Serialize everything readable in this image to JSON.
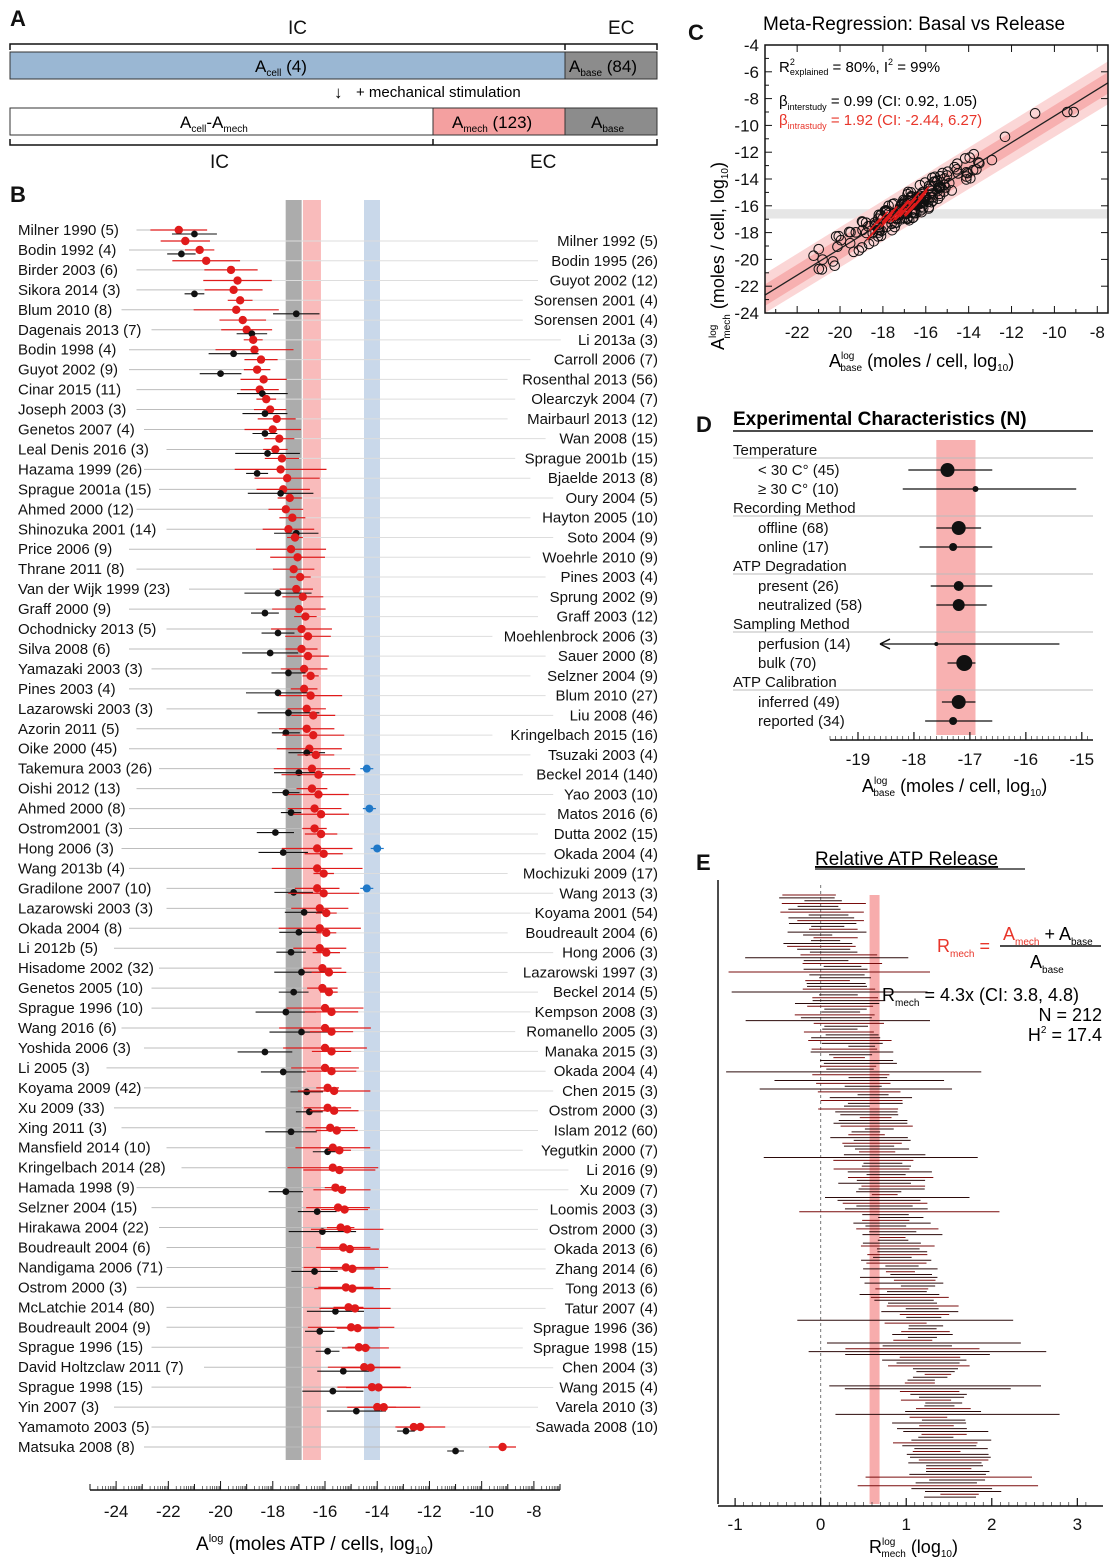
{
  "panelA": {
    "letter": "A",
    "top_ic": "IC",
    "top_ec": "EC",
    "acell_label": "A",
    "acell_sub": "cell",
    "acell_n": " (4)",
    "abase_label": "A",
    "abase_sub": "base",
    "abase_n": " (84)",
    "arrow": "↓",
    "stim": "+ mechanical stimulation",
    "bot_cell_label": "A",
    "bot_cell_sub": "cell",
    "bot_dash": "-A",
    "bot_mech_sub": "mech",
    "amech_label": "A",
    "amech_sub": "mech",
    "amech_n": " (123)",
    "bot_base_label": "A",
    "bot_base_sub": "base",
    "bot_ic": "IC",
    "bot_ec": "EC",
    "colors": {
      "blue": "#9ab7d3",
      "gray": "#8c8c8c",
      "pink": "#f4a0a0"
    }
  },
  "panelB": {
    "letter": "B",
    "xlabel_pre": "A",
    "xlabel_sup": "log",
    "xlabel_post": " (moles ATP / cells, log",
    "xlabel_sub": "10",
    "xlabel_end": ")",
    "ticks": [
      "-24",
      "-22",
      "-20",
      "-18",
      "-16",
      "-14",
      "-12",
      "-10",
      "-8"
    ],
    "left_labels": [
      "Milner 1990 (5)",
      "Bodin 1992 (4)",
      "Birder 2003 (6)",
      "Sikora 2014 (3)",
      "Blum 2010 (8)",
      "Dagenais 2013 (7)",
      "Bodin 1998 (4)",
      "Guyot 2002 (9)",
      "Cinar 2015 (11)",
      "Joseph 2003 (3)",
      "Genetos 2007 (4)",
      "Leal Denis 2016 (3)",
      "Hazama 1999 (26)",
      "Sprague 2001a (15)",
      "Ahmed 2000 (12)",
      "Shinozuka 2001 (14)",
      "Price 2006 (9)",
      "Thrane 2011 (8)",
      "Van der Wijk 1999 (23)",
      "Graff 2000 (9)",
      "Ochodnicky 2013 (5)",
      "Silva 2008 (6)",
      "Yamazaki 2003 (3)",
      "Pines 2003 (4)",
      "Lazarowski 2003 (3)",
      "Azorin 2011 (5)",
      "Oike 2000 (45)",
      "Takemura 2003 (26)",
      "Oishi 2012 (13)",
      "Ahmed 2000 (8)",
      "Ostrom2001 (3)",
      "Hong 2006 (3)",
      "Wang 2013b (4)",
      "Gradilone 2007 (10)",
      "Lazarowski 2003 (3)",
      "Okada 2004 (8)",
      "Li 2012b (5)",
      "Hisadome 2002 (32)",
      "Genetos 2005 (10)",
      "Sprague 1996 (10)",
      "Wang 2016 (6)",
      "Yoshida 2006 (3)",
      "Li 2005 (3)",
      "Koyama 2009 (42)",
      "Xu 2009 (33)",
      "Xing 2011 (3)",
      "Mansfield 2014 (10)",
      "Kringelbach 2014 (28)",
      "Hamada 1998 (9)",
      "Selzner 2004 (15)",
      "Hirakawa 2004 (22)",
      "Boudreault 2004 (6)",
      "Nandigama 2006 (71)",
      "Ostrom 2000 (3)",
      "McLatchie 2014 (80)",
      "Boudreault 2004 (9)",
      "Sprague 1996 (15)",
      "David Holtzclaw 2011 (7)",
      "Sprague 1998 (15)",
      "Yin 2007 (3)",
      "Yamamoto 2003 (5)",
      "Matsuka 2008 (8)"
    ],
    "right_labels": [
      "Milner 1992 (5)",
      "Bodin 1995 (26)",
      "Guyot 2002 (12)",
      "Sorensen 2001 (4)",
      "Sorensen 2001 (4)",
      "Li 2013a (3)",
      "Carroll 2006 (7)",
      "Rosenthal 2013 (56)",
      "Olearczyk 2004 (7)",
      "Mairbaurl 2013 (12)",
      "Wan 2008  (15)",
      "Sprague 2001b (15)",
      "Bjaelde 2013 (8)",
      "Oury 2004 (5)",
      "Hayton 2005 (10)",
      "Soto 2004 (9)",
      "Woehrle 2010 (9)",
      "Pines 2003 (4)",
      "Sprung 2002 (9)",
      "Graff 2003 (12)",
      "Moehlenbrock 2006 (3)",
      "Sauer 2000 (8)",
      "Selzner 2004 (9)",
      "Blum 2010 (27)",
      "Liu 2008 (46)",
      "Kringelbach 2015 (16)",
      "Tsuzaki 2003 (4)",
      "Beckel 2014 (140)",
      "Yao 2003 (10)",
      "Matos 2016 (6)",
      "Dutta 2002 (15)",
      "Okada 2004 (4)",
      "Mochizuki 2009 (17)",
      "Wang 2013 (3)",
      "Koyama 2001 (54)",
      "Boudreault 2004 (6)",
      "Hong 2006 (3)",
      "Lazarowski 1997 (3)",
      "Beckel 2014 (5)",
      "Kempson 2008 (3)",
      "Romanello 2005 (3)",
      "Manaka 2015 (3)",
      "Okada 2004 (4)",
      "Chen 2015 (3)",
      "Ostrom 2000 (3)",
      "Islam 2012 (60)",
      "Yegutkin 2000 (7)",
      "Li 2016 (9)",
      "Xu 2009 (7)",
      "Loomis 2003 (3)",
      "Ostrom 2000 (3)",
      "Okada 2013 (6)",
      "Zhang 2014 (6)",
      "Tong 2013 (6)",
      "Tatur 2007 (4)",
      "Sprague 1996 (36)",
      "Sprague 1998 (15)",
      "Chen 2004 (3)",
      "Wang 2015 (4)",
      "Varela 2010 (3)",
      "Sawada 2008 (10)"
    ]
  },
  "panelC": {
    "letter": "C",
    "title": "Meta-Regression: Basal vs Release",
    "r2_pre": "R",
    "r2_sup": "2",
    "r2_sub": "explained",
    "r2_post": " = 80%, I",
    "i2_sup": "2",
    "i2_post": " = 99%",
    "beta1_sym": "β",
    "beta1_sub": "interstudy",
    "beta1_post": " = 0.99 (CI: 0.92, 1.05)",
    "beta2_sym": "β",
    "beta2_sub": "intrastudy",
    "beta2_post": " = 1.92 (CI: -2.44, 6.27)",
    "ylabel_a": "A",
    "ylabel_sup": "log",
    "ylabel_sub": "mech",
    "ylabel_post": " (moles / cell, log",
    "ylabel_sub2": "10",
    "ylabel_end": ")",
    "xlabel_a": "A",
    "xlabel_sup": "log",
    "xlabel_sub": "base",
    "xlabel_post": " (moles / cell, log",
    "xlabel_sub2": "10",
    "xlabel_end": ")",
    "xticks": [
      "-22",
      "-20",
      "-18",
      "-16",
      "-14",
      "-12",
      "-10",
      "-8"
    ],
    "yticks": [
      "-4",
      "-6",
      "-8",
      "-10",
      "-12",
      "-14",
      "-16",
      "-18",
      "-20",
      "-22",
      "-24"
    ]
  },
  "panelD": {
    "letter": "D",
    "title": "Experimental Characteristics (N)",
    "groups": [
      {
        "header": "Temperature",
        "rows": [
          "< 30 C° (45)",
          "≥ 30 C° (10)"
        ]
      },
      {
        "header": "Recording Method",
        "rows": [
          "offline (68)",
          "online (17)"
        ]
      },
      {
        "header": "ATP Degradation",
        "rows": [
          "present (26)",
          "neutralized (58)"
        ]
      },
      {
        "header": "Sampling Method",
        "rows": [
          "perfusion (14)",
          "bulk (70)"
        ]
      },
      {
        "header": "ATP Calibration",
        "rows": [
          "inferred (49)",
          "reported (34)"
        ]
      }
    ],
    "xticks": [
      "-19",
      "-18",
      "-17",
      "-16",
      "-15"
    ],
    "xlabel_a": "A",
    "xlabel_sup": "log",
    "xlabel_sub": "base",
    "xlabel_post": " (moles / cell, log",
    "xlabel_sub2": "10",
    "xlabel_end": ")"
  },
  "panelE": {
    "letter": "E",
    "title": "Relative ATP Release",
    "eq_r": "R",
    "eq_rsub": "mech",
    "eq_eq": " = ",
    "eq_num_a": "A",
    "eq_num_asub": "mech",
    "eq_num_plus": " + A",
    "eq_num_bsub": "base",
    "eq_den": "A",
    "eq_den_sub": "base",
    "res_r": "R",
    "res_sub": "mech",
    "res_post": " = 4.3x (CI: 3.8, 4.8)",
    "n_text": "N = 212",
    "h2_pre": "H",
    "h2_sup": "2",
    "h2_post": " = 17.4",
    "xticks": [
      "-1",
      "0",
      "1",
      "2",
      "3"
    ],
    "xlabel_r": "R",
    "xlabel_sup": "log",
    "xlabel_sub": "mech",
    "xlabel_post": " (log",
    "xlabel_sub2": "10",
    "xlabel_end": ")"
  },
  "chart_data": [
    {
      "type": "scatter",
      "panel": "B",
      "subtype": "forest",
      "xlim": [
        -25,
        -7
      ],
      "summary_bands": {
        "gray_center": -17.2,
        "pink_center": -16.5,
        "blue_center": -14.2
      },
      "left_release_means": [
        -21.6,
        -20.8,
        -19.6,
        -19.5,
        -19.4,
        -19.0,
        -18.7,
        -18.6,
        -18.5,
        -18.1,
        -18.0,
        -17.9,
        -17.7,
        -17.6,
        -17.5,
        -17.4,
        -17.3,
        -17.2,
        -17.1,
        -17.0,
        -16.9,
        -16.9,
        -16.8,
        -16.8,
        -16.7,
        -16.7,
        -16.6,
        -16.5,
        -16.5,
        -16.4,
        -16.4,
        -16.3,
        -16.3,
        -16.3,
        -16.2,
        -16.2,
        -16.2,
        -16.1,
        -16.1,
        -16.0,
        -16.0,
        -16.0,
        -16.0,
        -15.9,
        -15.9,
        -15.8,
        -15.7,
        -15.7,
        -15.6,
        -15.5,
        -15.4,
        -15.3,
        -15.2,
        -15.2,
        -15.1,
        -15.0,
        -14.7,
        -14.5,
        -14.2,
        -14.0,
        -12.6,
        -9.2
      ],
      "left_basal_means": [
        -21.0,
        -21.5,
        null,
        -21.0,
        -17.1,
        -18.8,
        -19.5,
        -20.0,
        -18.4,
        -18.3,
        -18.3,
        -18.2,
        -18.6,
        -17.7,
        null,
        -17.1,
        null,
        null,
        -17.8,
        -18.3,
        -17.8,
        -18.1,
        -17.4,
        -17.8,
        -17.4,
        -17.5,
        -16.7,
        -17.0,
        -17.5,
        -17.3,
        -17.9,
        -17.6,
        null,
        -17.2,
        -16.8,
        -17.0,
        -17.3,
        -16.9,
        -17.2,
        -17.5,
        -16.9,
        -18.3,
        -17.6,
        -16.7,
        -16.6,
        -17.3,
        -15.9,
        null,
        -17.5,
        -16.3,
        -16.1,
        null,
        -16.4,
        null,
        -15.6,
        -16.2,
        -15.9,
        -15.3,
        -15.7,
        -14.8,
        -12.9,
        -11.0
      ],
      "right_release_means": [
        -21.6,
        -20.8,
        -19.6,
        -19.5,
        -19.4,
        -19.0,
        -18.7,
        -18.6,
        -18.5,
        -18.1,
        -18.0,
        -17.9,
        -17.7,
        -17.6,
        -17.5,
        -17.4,
        -17.3,
        -17.2,
        -17.1,
        -17.0,
        -16.9,
        -16.9,
        -16.8,
        -16.8,
        -16.7,
        -16.7,
        -16.6,
        -16.5,
        -16.5,
        -16.4,
        -16.4,
        -16.3,
        -16.3,
        -16.3,
        -16.2,
        -16.2,
        -16.2,
        -16.1,
        -16.1,
        -16.0,
        -16.0,
        -16.0,
        -16.0,
        -15.9,
        -15.9,
        -15.8,
        -15.7,
        -15.7,
        -15.6,
        -15.5,
        -15.4,
        -15.3,
        -15.2,
        -15.2,
        -15.1,
        -15.0,
        -14.7,
        -14.5,
        -14.2,
        -14.0,
        -12.6
      ],
      "cell_points": [
        {
          "row": 27,
          "x": -14.4
        },
        {
          "row": 29,
          "x": -14.3
        },
        {
          "row": 31,
          "x": -14.0
        },
        {
          "row": 33,
          "x": -14.4
        }
      ]
    },
    {
      "type": "scatter",
      "panel": "C",
      "xlabel": "A base log (moles / cell, log10)",
      "ylabel": "A mech log (moles / cell, log10)",
      "xlim": [
        -23.5,
        -7.5
      ],
      "ylim": [
        -24,
        -4
      ],
      "fit": {
        "slope": 0.99,
        "intercept": 0.6
      },
      "summary_band_y": -16.6
    },
    {
      "type": "scatter",
      "panel": "D",
      "subtype": "forest",
      "xlim": [
        -19.5,
        -14.8
      ],
      "band": [
        -17.6,
        -16.9
      ],
      "rows": [
        {
          "label": "< 30 C° (45)",
          "mean": -17.4,
          "lo": -18.1,
          "hi": -16.6,
          "size": 7
        },
        {
          "label": "≥ 30 C° (10)",
          "mean": -16.9,
          "lo": -18.2,
          "hi": -15.1,
          "size": 3
        },
        {
          "label": "offline (68)",
          "mean": -17.2,
          "lo": -17.6,
          "hi": -16.8,
          "size": 7
        },
        {
          "label": "online (17)",
          "mean": -17.3,
          "lo": -17.9,
          "hi": -16.6,
          "size": 4
        },
        {
          "label": "present (26)",
          "mean": -17.2,
          "lo": -17.7,
          "hi": -16.6,
          "size": 5
        },
        {
          "label": "neutralized (58)",
          "mean": -17.2,
          "lo": -17.6,
          "hi": -16.7,
          "size": 6
        },
        {
          "label": "perfusion (14)",
          "mean": -17.6,
          "lo": -19.1,
          "hi": -15.4,
          "size": 2
        },
        {
          "label": "bulk (70)",
          "mean": -17.1,
          "lo": -17.4,
          "hi": -16.9,
          "size": 8
        },
        {
          "label": "inferred (49)",
          "mean": -17.2,
          "lo": -17.5,
          "hi": -16.9,
          "size": 7
        },
        {
          "label": "reported (34)",
          "mean": -17.3,
          "lo": -17.8,
          "hi": -16.6,
          "size": 4
        }
      ]
    },
    {
      "type": "scatter",
      "panel": "E",
      "subtype": "forest",
      "xlim": [
        -1.2,
        3.3
      ],
      "summary": 0.63,
      "n": 212
    }
  ]
}
